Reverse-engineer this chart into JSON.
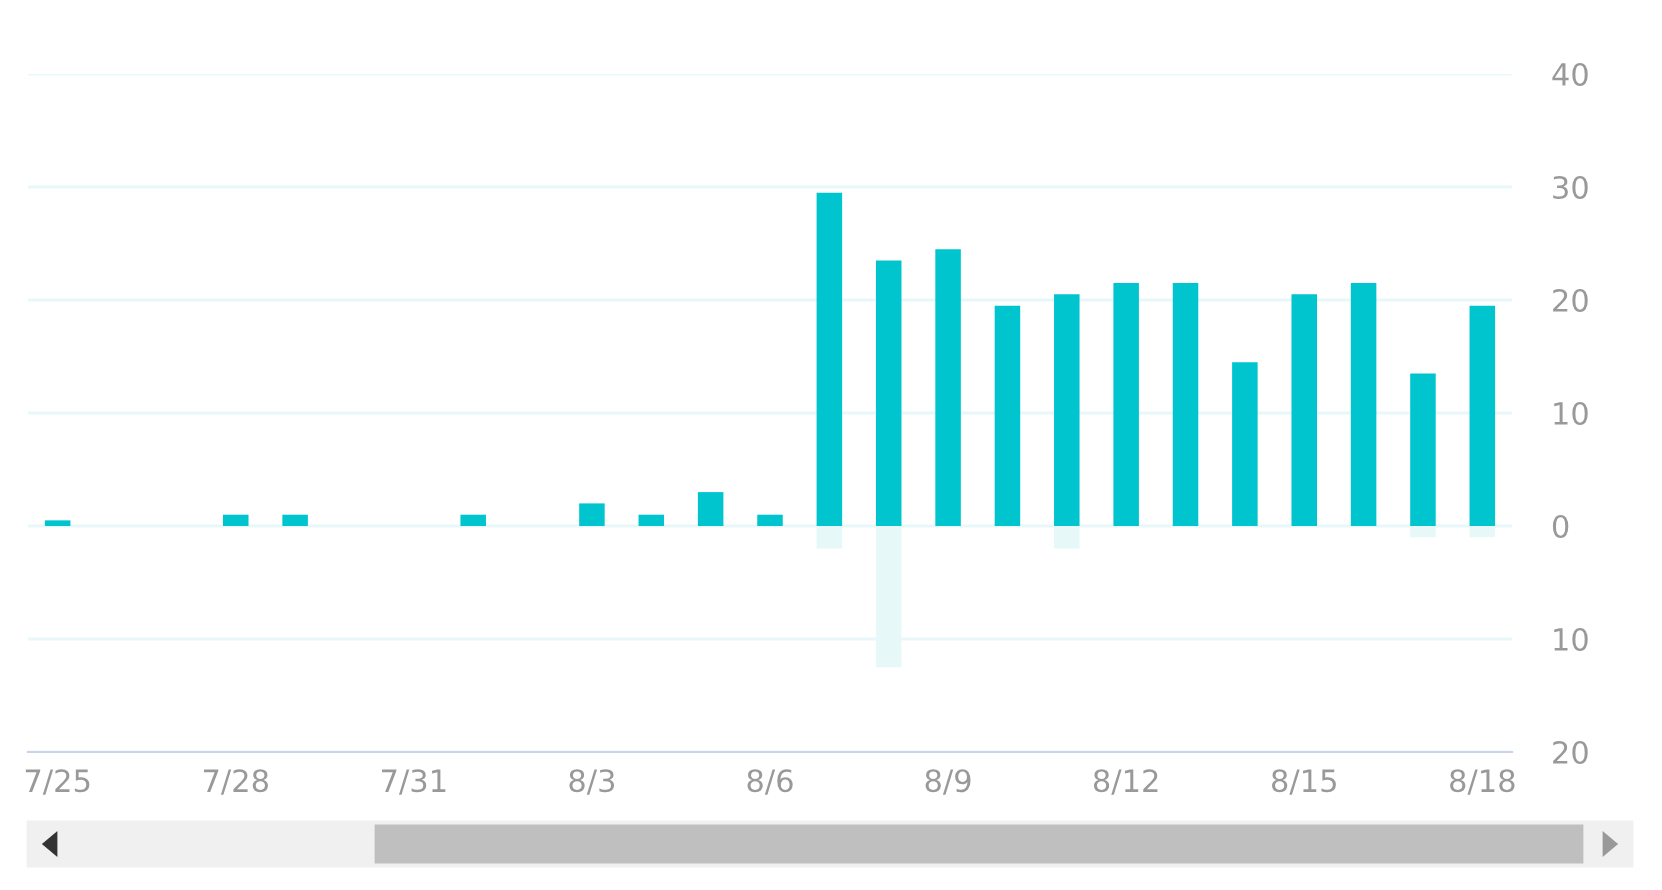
{
  "chart_data": {
    "type": "bar",
    "stacked": true,
    "categories": [
      "7/25",
      null,
      null,
      "7/28",
      null,
      null,
      "7/31",
      null,
      null,
      "8/3",
      null,
      null,
      "8/6",
      null,
      null,
      "8/9",
      null,
      null,
      "8/12",
      null,
      null,
      "8/15",
      null,
      null,
      "8/18"
    ],
    "series": [
      {
        "color": "#00c5cf",
        "values": [
          0.5,
          0,
          0,
          1,
          1,
          0,
          0,
          1,
          0,
          2,
          1,
          3,
          1,
          29.5,
          23.5,
          24.5,
          19.5,
          20.5,
          21.5,
          21.5,
          14.5,
          20.5,
          21.5,
          13.5,
          19.5
        ]
      },
      {
        "color": "#e6f8f8",
        "values": [
          0,
          0,
          0,
          0,
          0,
          0,
          0,
          0,
          0,
          0,
          0,
          0,
          0,
          -2,
          -12.5,
          0,
          0,
          -2,
          0,
          0,
          0,
          0,
          0,
          -1,
          -1
        ]
      }
    ],
    "ylim": [
      -20,
      40
    ],
    "yticks": [
      {
        "value": -20,
        "label": "20"
      },
      {
        "value": -10,
        "label": "10"
      },
      0,
      10,
      20,
      30,
      40
    ],
    "grid": "y"
  }
}
